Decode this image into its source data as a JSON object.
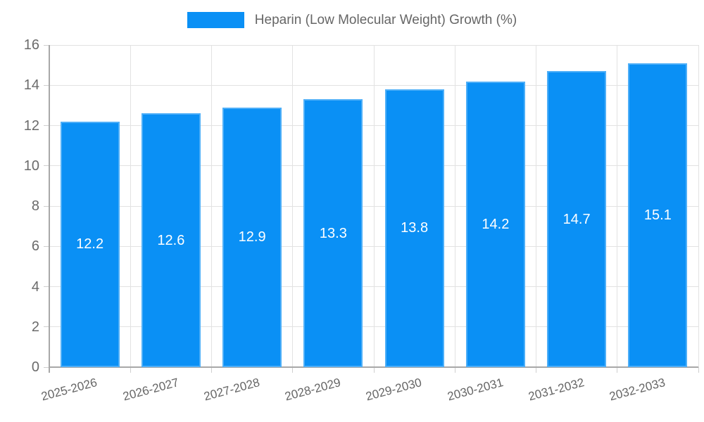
{
  "legend": {
    "label": "Heparin (Low Molecular Weight) Growth (%)"
  },
  "chart_data": {
    "type": "bar",
    "title": "",
    "xlabel": "",
    "ylabel": "",
    "categories": [
      "2025-2026",
      "2026-2027",
      "2027-2028",
      "2028-2029",
      "2029-2030",
      "2030-2031",
      "2031-2032",
      "2032-2033"
    ],
    "values": [
      12.2,
      12.6,
      12.9,
      13.3,
      13.8,
      14.2,
      14.7,
      15.1
    ],
    "series_name": "Heparin (Low Molecular Weight) Growth (%)",
    "ylim": [
      0,
      16
    ],
    "yticks": [
      0,
      2,
      4,
      6,
      8,
      10,
      12,
      14,
      16
    ],
    "grid": true,
    "legend_position": "top-center",
    "x_label_rotation_deg": -15,
    "colors": {
      "bar": "#0a90f5",
      "value_label": "#ffffff",
      "grid_line": "#e2e2e2",
      "axis_line": "#a8a8a8",
      "tick_mark": "#cfcfcf",
      "tick_label": "#6b6b6b",
      "legend_text": "#666666",
      "background": "#ffffff"
    }
  }
}
